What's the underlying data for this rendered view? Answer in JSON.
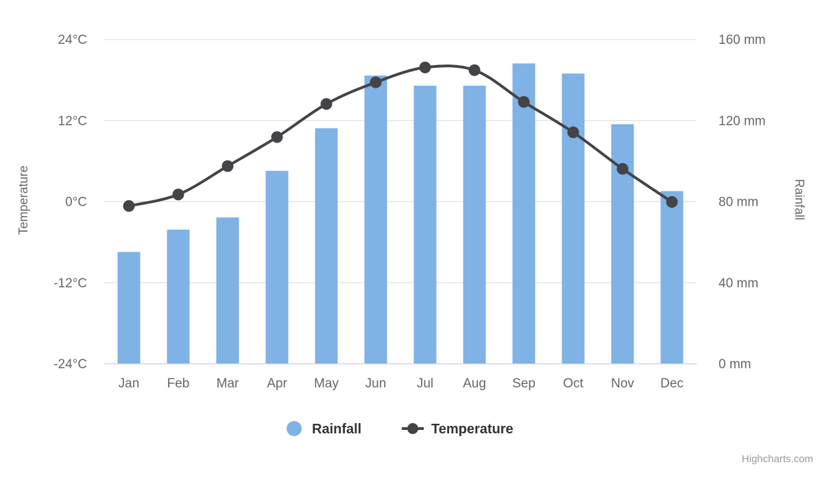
{
  "chart_data": {
    "type": "combo-column-line-dual-axes",
    "categories": [
      "Jan",
      "Feb",
      "Mar",
      "Apr",
      "May",
      "Jun",
      "Jul",
      "Aug",
      "Sep",
      "Oct",
      "Nov",
      "Dec"
    ],
    "series": [
      {
        "name": "Rainfall",
        "type": "column",
        "axis": "right",
        "unit": "mm",
        "color": "#7fb2e5",
        "values": [
          55,
          66,
          72,
          95,
          116,
          142,
          137,
          137,
          148,
          143,
          118,
          85
        ]
      },
      {
        "name": "Temperature",
        "type": "spline",
        "axis": "left",
        "unit": "°C",
        "color": "#434348",
        "values": [
          -0.7,
          1.0,
          5.2,
          9.5,
          14.4,
          17.6,
          19.8,
          19.4,
          14.7,
          10.2,
          4.8,
          -0.1
        ]
      }
    ],
    "y_axis_left": {
      "title": "Temperature",
      "min": -24,
      "max": 24,
      "tick_labels": [
        "24°C",
        "12°C",
        "0°C",
        "-12°C",
        "-24°C"
      ]
    },
    "y_axis_right": {
      "title": "Rainfall",
      "min": 0,
      "max": 160,
      "tick_labels": [
        "160 mm",
        "120 mm",
        "80 mm",
        "40 mm",
        "0 mm"
      ]
    },
    "legend": {
      "position": "bottom-center",
      "items": [
        "Rainfall",
        "Temperature"
      ]
    },
    "grid": true,
    "title": "",
    "credits": "Highcharts.com"
  },
  "colors": {
    "grid_line": "#e6e6e6",
    "x_axis_line": "#ccd6eb",
    "background": "#ffffff"
  }
}
